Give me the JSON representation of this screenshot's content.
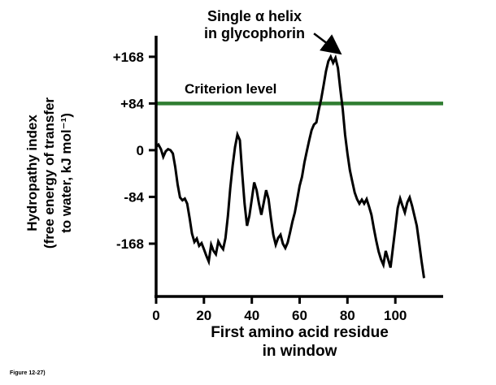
{
  "figure": {
    "caption": "Figure 12-27)"
  },
  "chart_data": {
    "type": "line",
    "title": "",
    "xlabel_line1": "First amino acid residue",
    "xlabel_line2": "in window",
    "ylabel_line1": "Hydropathy index",
    "ylabel_line2": "(free energy of transfer",
    "ylabel_line3": "to water, kJ mol⁻¹)",
    "xlim": [
      0,
      120
    ],
    "ylim": [
      -263,
      200
    ],
    "grid": false,
    "x_ticks": {
      "values": [
        0,
        20,
        40,
        60,
        80,
        100
      ],
      "labels": [
        "0",
        "20",
        "40",
        "60",
        "80",
        "100"
      ]
    },
    "y_ticks": {
      "values": [
        168,
        84,
        0,
        -84,
        -168
      ],
      "labels": [
        "+168",
        "+84",
        "0",
        "-84",
        "-168"
      ]
    },
    "criterion": {
      "value": 84,
      "label": "Criterion level",
      "color": "#2f7d31"
    },
    "annotation": {
      "line1": "Single α helix",
      "line2": "in glycophorin",
      "arrow_from": [
        66,
        210
      ],
      "arrow_to": [
        77,
        174
      ]
    },
    "axis_color": "#000000",
    "series": [
      {
        "name": "hydropathy",
        "color": "#000000",
        "points": [
          [
            0,
            6
          ],
          [
            1,
            10
          ],
          [
            2,
            2
          ],
          [
            3,
            -12
          ],
          [
            4,
            -2
          ],
          [
            5,
            2
          ],
          [
            6,
            0
          ],
          [
            7,
            -6
          ],
          [
            8,
            -30
          ],
          [
            9,
            -62
          ],
          [
            10,
            -85
          ],
          [
            11,
            -90
          ],
          [
            12,
            -87
          ],
          [
            13,
            -96
          ],
          [
            14,
            -122
          ],
          [
            15,
            -150
          ],
          [
            16,
            -165
          ],
          [
            17,
            -159
          ],
          [
            18,
            -172
          ],
          [
            19,
            -167
          ],
          [
            20,
            -178
          ],
          [
            21,
            -190
          ],
          [
            22,
            -200
          ],
          [
            23,
            -170
          ],
          [
            24,
            -181
          ],
          [
            25,
            -187
          ],
          [
            26,
            -164
          ],
          [
            27,
            -172
          ],
          [
            28,
            -178
          ],
          [
            29,
            -158
          ],
          [
            30,
            -118
          ],
          [
            31,
            -68
          ],
          [
            32,
            -28
          ],
          [
            33,
            6
          ],
          [
            34,
            28
          ],
          [
            35,
            18
          ],
          [
            36,
            -42
          ],
          [
            37,
            -96
          ],
          [
            38,
            -136
          ],
          [
            39,
            -118
          ],
          [
            40,
            -88
          ],
          [
            41,
            -58
          ],
          [
            42,
            -72
          ],
          [
            43,
            -96
          ],
          [
            44,
            -116
          ],
          [
            45,
            -94
          ],
          [
            46,
            -72
          ],
          [
            47,
            -88
          ],
          [
            48,
            -122
          ],
          [
            49,
            -152
          ],
          [
            50,
            -170
          ],
          [
            51,
            -158
          ],
          [
            52,
            -152
          ],
          [
            53,
            -168
          ],
          [
            54,
            -176
          ],
          [
            55,
            -166
          ],
          [
            56,
            -148
          ],
          [
            57,
            -128
          ],
          [
            58,
            -112
          ],
          [
            59,
            -88
          ],
          [
            60,
            -64
          ],
          [
            61,
            -48
          ],
          [
            62,
            -22
          ],
          [
            63,
            -2
          ],
          [
            64,
            18
          ],
          [
            65,
            36
          ],
          [
            66,
            46
          ],
          [
            67,
            50
          ],
          [
            68,
            72
          ],
          [
            69,
            92
          ],
          [
            70,
            116
          ],
          [
            71,
            142
          ],
          [
            72,
            160
          ],
          [
            73,
            168
          ],
          [
            74,
            157
          ],
          [
            75,
            166
          ],
          [
            76,
            148
          ],
          [
            77,
            110
          ],
          [
            78,
            74
          ],
          [
            79,
            28
          ],
          [
            80,
            -6
          ],
          [
            81,
            -36
          ],
          [
            82,
            -56
          ],
          [
            83,
            -76
          ],
          [
            84,
            -88
          ],
          [
            85,
            -96
          ],
          [
            86,
            -89
          ],
          [
            87,
            -96
          ],
          [
            88,
            -88
          ],
          [
            89,
            -101
          ],
          [
            90,
            -116
          ],
          [
            91,
            -140
          ],
          [
            92,
            -162
          ],
          [
            93,
            -182
          ],
          [
            94,
            -196
          ],
          [
            95,
            -206
          ],
          [
            96,
            -181
          ],
          [
            97,
            -196
          ],
          [
            98,
            -211
          ],
          [
            99,
            -176
          ],
          [
            100,
            -140
          ],
          [
            101,
            -104
          ],
          [
            102,
            -87
          ],
          [
            103,
            -100
          ],
          [
            104,
            -112
          ],
          [
            105,
            -94
          ],
          [
            106,
            -85
          ],
          [
            107,
            -100
          ],
          [
            108,
            -118
          ],
          [
            109,
            -136
          ],
          [
            110,
            -168
          ],
          [
            111,
            -200
          ],
          [
            112,
            -230
          ]
        ]
      }
    ]
  }
}
